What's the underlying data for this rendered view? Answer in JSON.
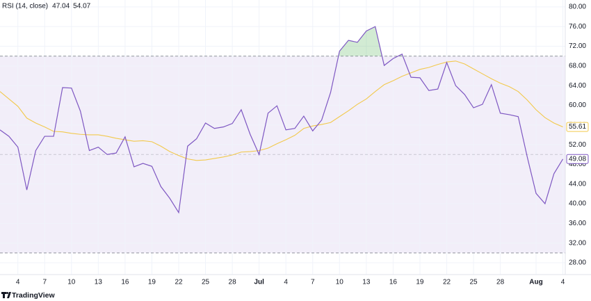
{
  "chart_data": {
    "type": "line",
    "title": "RSI (14, close)",
    "categories": [
      null,
      null,
      "4",
      null,
      null,
      "7",
      null,
      null,
      "10",
      null,
      null,
      "13",
      null,
      null,
      "16",
      null,
      null,
      "19",
      null,
      null,
      "22",
      null,
      null,
      "25",
      null,
      null,
      "28",
      null,
      null,
      "Jul",
      null,
      null,
      "4",
      null,
      null,
      "7",
      null,
      null,
      "10",
      null,
      null,
      "13",
      null,
      null,
      "16",
      null,
      null,
      "19",
      null,
      null,
      "22",
      null,
      null,
      "25",
      null,
      null,
      "28",
      null,
      null,
      null,
      "Aug",
      null,
      null,
      "4"
    ],
    "series": [
      {
        "color": "#7e57c2",
        "legend_value": "47.04",
        "last_label": "49.08",
        "values": [
          55.0,
          53.7,
          51.5,
          42.8,
          50.8,
          53.7,
          53.7,
          63.6,
          63.5,
          58.8,
          50.8,
          51.5,
          50.0,
          50.3,
          53.6,
          47.5,
          48.2,
          47.6,
          43.5,
          41.1,
          38.2,
          51.7,
          53.2,
          56.4,
          55.3,
          55.6,
          56.3,
          59.1,
          54.1,
          50.0,
          58.4,
          59.9,
          55.0,
          55.3,
          57.8,
          54.8,
          57.0,
          62.6,
          71.0,
          73.2,
          72.8,
          75.1,
          76.0,
          68.1,
          69.5,
          70.4,
          65.7,
          65.6,
          63.0,
          63.3,
          68.7,
          64.0,
          62.2,
          59.5,
          60.2,
          64.2,
          58.4,
          58.1,
          57.7,
          49.6,
          42.1,
          40.0,
          46.1,
          49.08
        ]
      },
      {
        "color": "#f2c94c",
        "legend_value": "54.07",
        "last_label": "55.61",
        "values": [
          62.8,
          61.3,
          59.8,
          57.4,
          56.4,
          55.6,
          54.7,
          54.6,
          54.3,
          54.1,
          54.0,
          54.0,
          53.7,
          53.3,
          53.0,
          52.7,
          52.8,
          52.6,
          51.7,
          50.6,
          49.8,
          49.1,
          48.8,
          48.9,
          49.2,
          49.5,
          49.9,
          50.5,
          50.6,
          50.8,
          51.3,
          52.2,
          53.0,
          53.9,
          55.3,
          55.8,
          56.1,
          56.5,
          57.7,
          58.9,
          60.2,
          61.3,
          62.8,
          64.2,
          65.0,
          65.9,
          66.6,
          67.3,
          67.7,
          68.3,
          68.8,
          69.0,
          68.4,
          67.4,
          66.4,
          65.4,
          64.5,
          63.8,
          62.8,
          61.1,
          59.1,
          57.5,
          56.4,
          55.61
        ]
      }
    ],
    "bands": {
      "upper": 70,
      "middle": 50,
      "lower": 30
    },
    "band_color": "#7e57c2",
    "overbought_color": "#4caf50",
    "ylim": [
      25.6,
      81.4
    ],
    "yticks": [
      {
        "value": 28,
        "label": "28.00"
      },
      {
        "value": 32,
        "label": "32.00"
      },
      {
        "value": 36,
        "label": "36.00"
      },
      {
        "value": 40,
        "label": "40.00"
      },
      {
        "value": 44,
        "label": "44.00"
      },
      {
        "value": 48,
        "label": "48.00"
      },
      {
        "value": 52,
        "label": "52.00"
      },
      {
        "value": 56,
        "label": "56.00"
      },
      {
        "value": 60,
        "label": "60.00"
      },
      {
        "value": 64,
        "label": "64.00"
      },
      {
        "value": 68,
        "label": "68.00"
      },
      {
        "value": 72,
        "label": "72.00"
      },
      {
        "value": 76,
        "label": "76.00"
      },
      {
        "value": 80,
        "label": "80.00"
      }
    ],
    "grid": true
  },
  "brand": "TradingView"
}
